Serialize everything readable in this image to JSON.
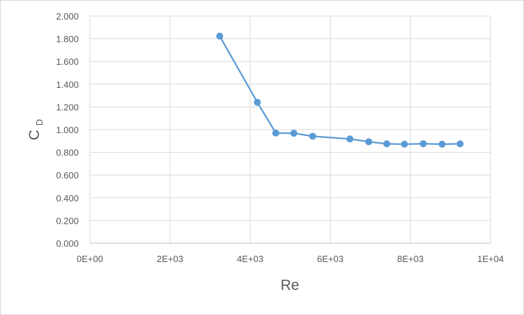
{
  "chart_data": {
    "type": "scatter",
    "title": "",
    "xlabel": "Re",
    "ylabel": {
      "main": "C",
      "subscript": "D"
    },
    "xlim": [
      0,
      10000
    ],
    "ylim": [
      0,
      2
    ],
    "x_ticks": [
      0,
      2000,
      4000,
      6000,
      8000,
      10000
    ],
    "x_tick_labels": [
      "0E+00",
      "2E+03",
      "4E+03",
      "6E+03",
      "8E+03",
      "1E+04"
    ],
    "y_ticks": [
      0,
      0.2,
      0.4,
      0.6,
      0.8,
      1.0,
      1.2,
      1.4,
      1.6,
      1.8,
      2.0
    ],
    "y_tick_labels": [
      "0.000",
      "0.200",
      "0.400",
      "0.600",
      "0.800",
      "1.000",
      "1.200",
      "1.400",
      "1.600",
      "1.800",
      "2.000"
    ],
    "grid": true,
    "legend": "none",
    "series": [
      {
        "color": "#5b9bd5",
        "marker": "circle",
        "line": "straight",
        "x": [
          3240,
          4180,
          4640,
          5090,
          5560,
          6490,
          6960,
          7410,
          7850,
          8320,
          8790,
          9240
        ],
        "y": [
          1.823,
          1.24,
          0.97,
          0.968,
          0.942,
          0.918,
          0.893,
          0.875,
          0.872,
          0.876,
          0.872,
          0.875
        ]
      }
    ]
  }
}
